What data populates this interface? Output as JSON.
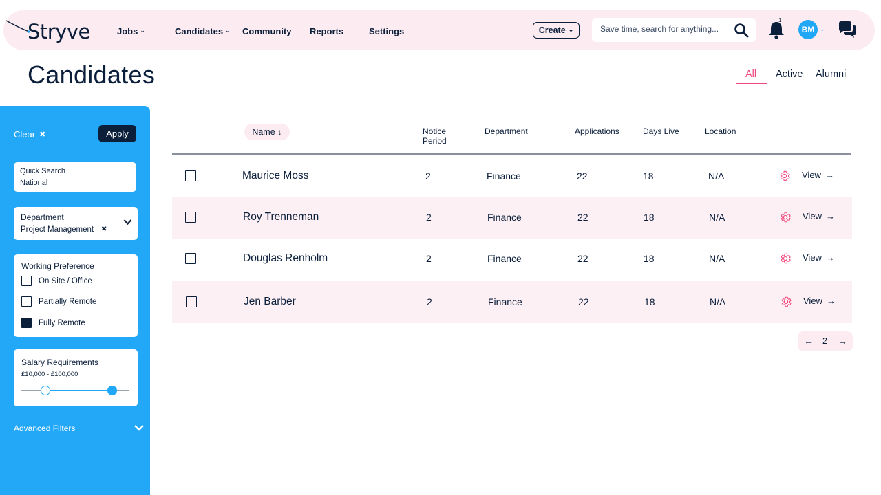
{
  "brand": {
    "name": "Stryve"
  },
  "nav": {
    "items": [
      {
        "label": "Jobs",
        "has_dropdown": true
      },
      {
        "label": "Candidates",
        "has_dropdown": true
      },
      {
        "label": "Community",
        "has_dropdown": false
      },
      {
        "label": "Reports",
        "has_dropdown": false
      },
      {
        "label": "Settings",
        "has_dropdown": false
      }
    ],
    "create_label": "Create",
    "search_placeholder": "Save time, search for anything...",
    "notification_count": "1",
    "avatar_initials": "BM"
  },
  "page": {
    "title": "Candidates",
    "tabs": [
      {
        "label": "All",
        "active": true
      },
      {
        "label": "Active",
        "active": false
      },
      {
        "label": "Alumni",
        "active": false
      }
    ]
  },
  "filters": {
    "clear_label": "Clear",
    "apply_label": "Apply",
    "quick_search": {
      "label": "Quick Search",
      "value": "National"
    },
    "department": {
      "label": "Department",
      "value": "Project Management"
    },
    "working_preference": {
      "label": "Working Preference",
      "options": [
        {
          "label": "On Site / Office",
          "checked": false
        },
        {
          "label": "Partially Remote",
          "checked": false
        },
        {
          "label": "Fully Remote",
          "checked": true
        }
      ]
    },
    "salary": {
      "label": "Salary Requirements",
      "range_text": "£10,000 - £100,000",
      "min_fraction": 0.22,
      "max_fraction": 0.84
    },
    "advanced_label": "Advanced Filters"
  },
  "table": {
    "columns": {
      "name": "Name",
      "notice_period": "Notice\nPeriod",
      "department": "Department",
      "applications": "Applications",
      "days_live": "Days Live",
      "location": "Location"
    },
    "rows": [
      {
        "name": "Maurice Moss",
        "notice_period": "2",
        "department": "Finance",
        "applications": "22",
        "days_live": "18",
        "location": "N/A",
        "action": "View"
      },
      {
        "name": "Roy Trenneman",
        "notice_period": "2",
        "department": "Finance",
        "applications": "22",
        "days_live": "18",
        "location": "N/A",
        "action": "View"
      },
      {
        "name": "Douglas Renholm",
        "notice_period": "2",
        "department": "Finance",
        "applications": "22",
        "days_live": "18",
        "location": "N/A",
        "action": "View"
      },
      {
        "name": "Jen Barber",
        "notice_period": "2",
        "department": "Finance",
        "applications": "22",
        "days_live": "18",
        "location": "N/A",
        "action": "View"
      }
    ],
    "pagination": {
      "current": "2"
    }
  },
  "colors": {
    "accent": "#f0467a",
    "sidebar": "#23a8f7",
    "navy": "#0b1e3a",
    "pink_bg": "#fcecf1"
  }
}
